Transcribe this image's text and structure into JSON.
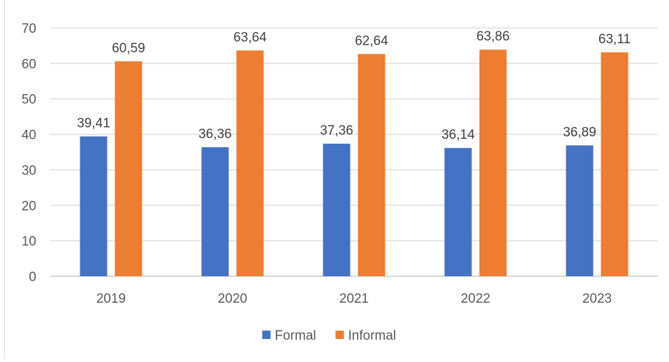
{
  "chart_data": {
    "type": "bar",
    "categories": [
      "2019",
      "2020",
      "2021",
      "2022",
      "2023"
    ],
    "series": [
      {
        "name": "Formal",
        "values": [
          39.41,
          36.36,
          37.36,
          36.14,
          36.89
        ],
        "labels": [
          "39,41",
          "36,36",
          "37,36",
          "36,14",
          "36,89"
        ],
        "color": "#4472C4"
      },
      {
        "name": "Informal",
        "values": [
          60.59,
          63.64,
          62.64,
          63.86,
          63.11
        ],
        "labels": [
          "60,59",
          "63,64",
          "62,64",
          "63,86",
          "63,11"
        ],
        "color": "#ED7D31"
      }
    ],
    "ylim": [
      0,
      70
    ],
    "yticks": [
      "0",
      "10",
      "20",
      "30",
      "40",
      "50",
      "60",
      "70"
    ],
    "grid": true,
    "legend": "bottom",
    "title": "",
    "xlabel": "",
    "ylabel": ""
  }
}
